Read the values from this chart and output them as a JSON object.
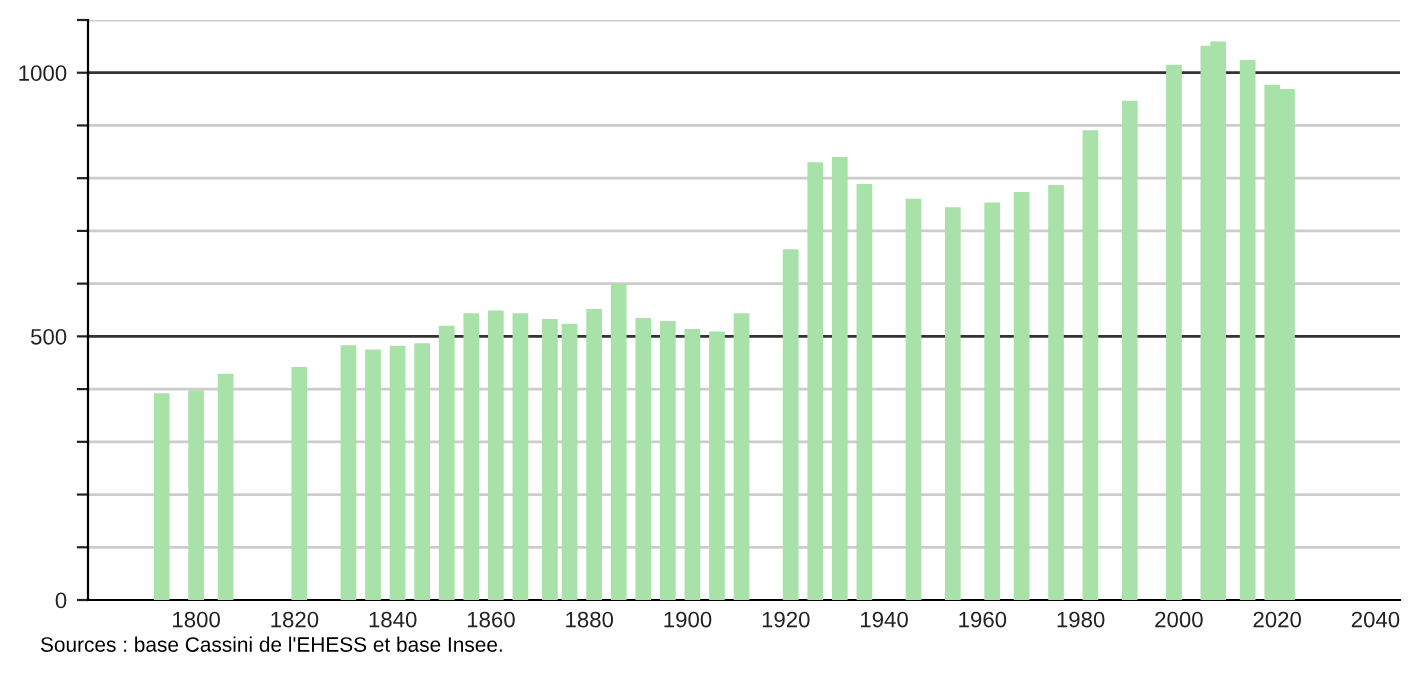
{
  "chart_data": {
    "type": "bar",
    "x": [
      1793,
      1800,
      1806,
      1821,
      1831,
      1836,
      1841,
      1846,
      1851,
      1856,
      1861,
      1866,
      1872,
      1876,
      1881,
      1886,
      1891,
      1896,
      1901,
      1906,
      1911,
      1921,
      1926,
      1931,
      1936,
      1946,
      1954,
      1962,
      1968,
      1975,
      1982,
      1990,
      1999,
      2006,
      2008,
      2014,
      2019,
      2022
    ],
    "values": [
      392,
      398,
      429,
      442,
      483,
      475,
      482,
      487,
      520,
      544,
      549,
      544,
      533,
      524,
      552,
      600,
      535,
      529,
      514,
      509,
      544,
      665,
      830,
      840,
      789,
      761,
      745,
      754,
      774,
      787,
      891,
      947,
      1015,
      1051,
      1059,
      1024,
      977,
      969
    ],
    "color": "#a9e2a9",
    "xlim": [
      1778,
      2045
    ],
    "xticks": [
      1800,
      1820,
      1840,
      1860,
      1880,
      1900,
      1920,
      1940,
      1960,
      1980,
      2000,
      2020,
      2040
    ],
    "ylim": [
      0,
      1100
    ],
    "yticks": [
      0,
      {
        "value": 100,
        "label": null
      },
      {
        "value": 200,
        "label": null
      },
      {
        "value": 300,
        "label": null
      },
      {
        "value": 400,
        "label": null
      },
      500,
      {
        "value": 600,
        "label": null
      },
      {
        "value": 700,
        "label": null
      },
      {
        "value": 800,
        "label": null
      },
      {
        "value": 900,
        "label": null
      },
      1000,
      {
        "value": 1100,
        "label": null
      }
    ],
    "grid": "y",
    "annotations": [
      "Sources : base Cassini de l'EHESS et base Insee."
    ]
  }
}
